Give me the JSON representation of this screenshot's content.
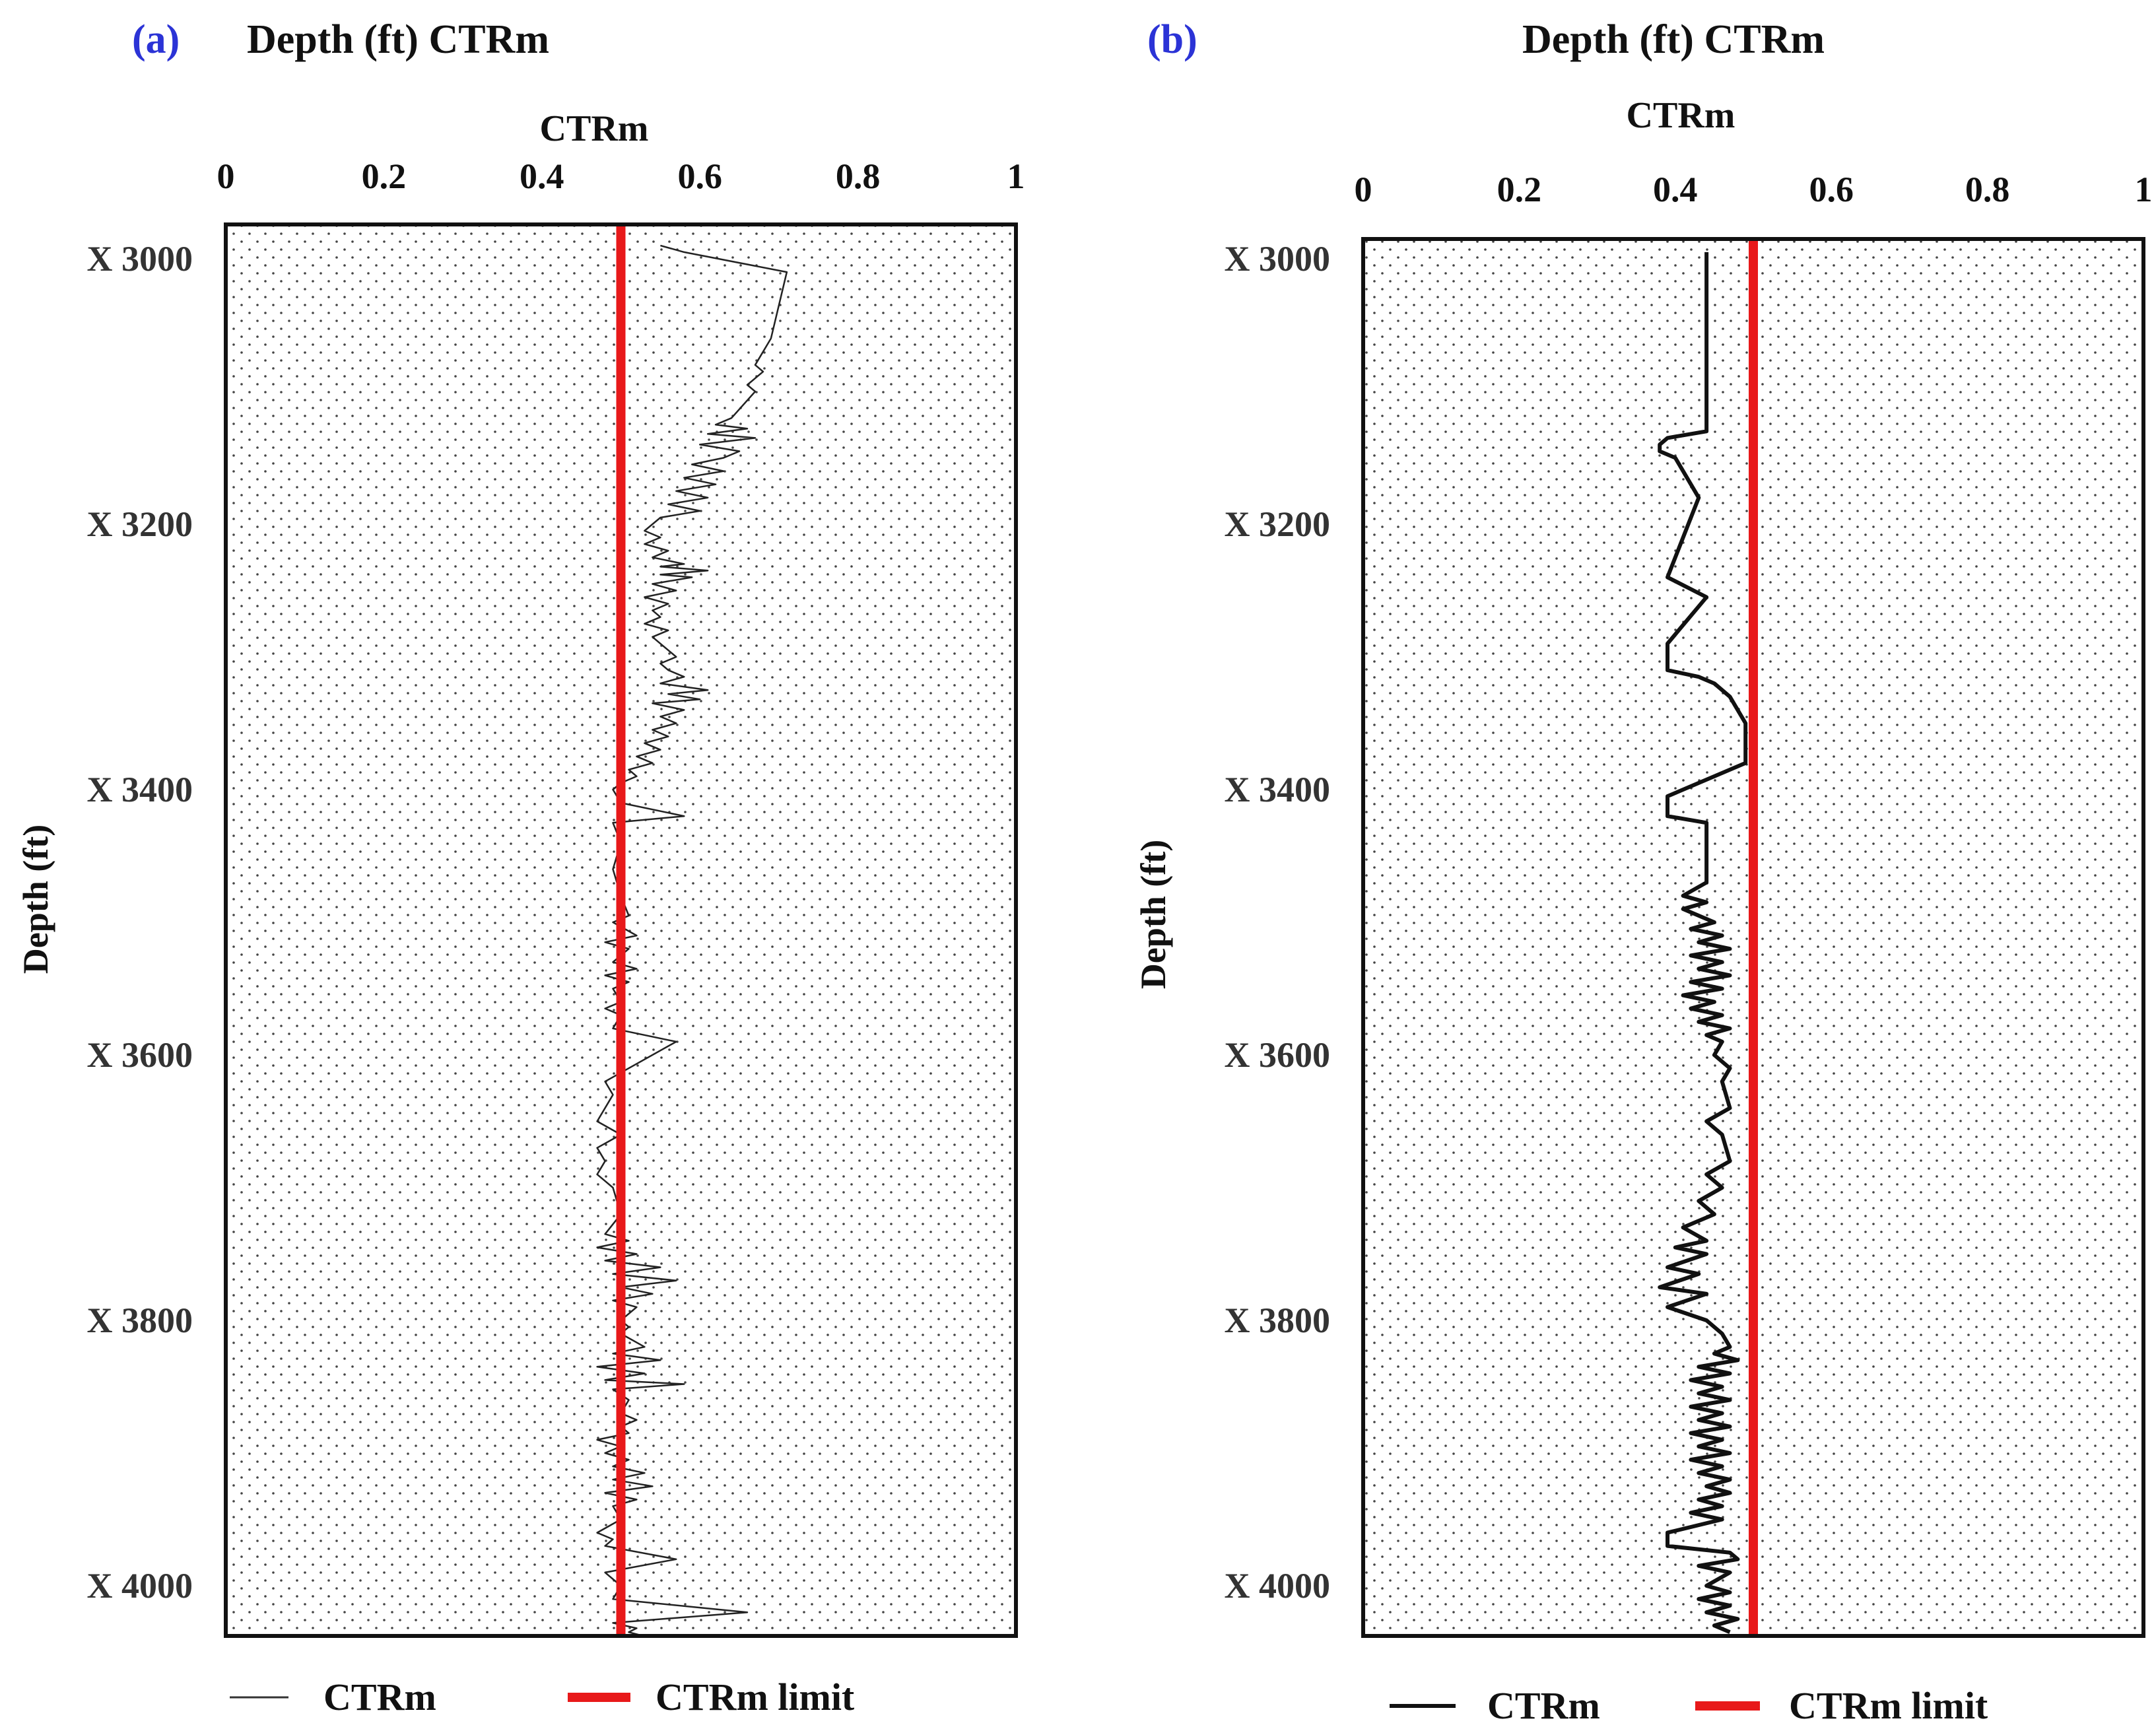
{
  "panels": [
    {
      "label": "(a)",
      "title": "Depth (ft) CTRm",
      "xlabel": "CTRm",
      "ylabel": "Depth (ft)",
      "legend": [
        "CTRm",
        "CTRm limit"
      ]
    },
    {
      "label": "(b)",
      "title": "Depth (ft) CTRm",
      "xlabel": "CTRm",
      "ylabel": "Depth (ft)",
      "legend": [
        "CTRm",
        "CTRm limit"
      ]
    }
  ],
  "chart_data": [
    {
      "type": "line",
      "title": "Depth (ft) CTRm",
      "xlabel": "CTRm",
      "ylabel": "Depth (ft)",
      "xlim": [
        0,
        1
      ],
      "ylim": [
        2990,
        4040
      ],
      "x_ticks": [
        0,
        0.2,
        0.4,
        0.6,
        0.8,
        1
      ],
      "x_tick_labels": [
        "0",
        "0.2",
        "0.4",
        "0.6",
        "0.8",
        "1"
      ],
      "y_ticks": [
        3000,
        3200,
        3400,
        3600,
        3800,
        4000
      ],
      "y_tick_labels": [
        "X 3000",
        "X 3200",
        "X 3400",
        "X 3600",
        "X 3800",
        "X 4000"
      ],
      "limit": 0.5,
      "colors": {
        "series": "#222222",
        "limit": "#e8191a"
      },
      "series": [
        {
          "name": "CTRm",
          "points": [
            [
              0.55,
              2990
            ],
            [
              0.58,
              2995
            ],
            [
              0.71,
              3010
            ],
            [
              0.69,
              3060
            ],
            [
              0.67,
              3080
            ],
            [
              0.68,
              3085
            ],
            [
              0.66,
              3095
            ],
            [
              0.67,
              3100
            ],
            [
              0.64,
              3120
            ],
            [
              0.62,
              3125
            ],
            [
              0.66,
              3128
            ],
            [
              0.61,
              3132
            ],
            [
              0.67,
              3135
            ],
            [
              0.6,
              3140
            ],
            [
              0.65,
              3145
            ],
            [
              0.63,
              3150
            ],
            [
              0.59,
              3155
            ],
            [
              0.63,
              3160
            ],
            [
              0.58,
              3165
            ],
            [
              0.62,
              3170
            ],
            [
              0.57,
              3175
            ],
            [
              0.61,
              3180
            ],
            [
              0.56,
              3185
            ],
            [
              0.6,
              3190
            ],
            [
              0.55,
              3195
            ],
            [
              0.54,
              3200
            ],
            [
              0.53,
              3205
            ],
            [
              0.55,
              3210
            ],
            [
              0.53,
              3215
            ],
            [
              0.56,
              3220
            ],
            [
              0.54,
              3225
            ],
            [
              0.58,
              3230
            ],
            [
              0.55,
              3232
            ],
            [
              0.61,
              3235
            ],
            [
              0.55,
              3238
            ],
            [
              0.59,
              3240
            ],
            [
              0.54,
              3245
            ],
            [
              0.57,
              3250
            ],
            [
              0.53,
              3255
            ],
            [
              0.56,
              3260
            ],
            [
              0.54,
              3265
            ],
            [
              0.55,
              3270
            ],
            [
              0.53,
              3275
            ],
            [
              0.56,
              3280
            ],
            [
              0.54,
              3285
            ],
            [
              0.55,
              3290
            ],
            [
              0.57,
              3300
            ],
            [
              0.55,
              3305
            ],
            [
              0.56,
              3310
            ],
            [
              0.58,
              3315
            ],
            [
              0.55,
              3320
            ],
            [
              0.61,
              3325
            ],
            [
              0.56,
              3328
            ],
            [
              0.6,
              3332
            ],
            [
              0.54,
              3335
            ],
            [
              0.58,
              3340
            ],
            [
              0.55,
              3345
            ],
            [
              0.57,
              3350
            ],
            [
              0.54,
              3355
            ],
            [
              0.56,
              3360
            ],
            [
              0.53,
              3365
            ],
            [
              0.55,
              3370
            ],
            [
              0.52,
              3375
            ],
            [
              0.54,
              3380
            ],
            [
              0.51,
              3385
            ],
            [
              0.52,
              3390
            ],
            [
              0.5,
              3395
            ],
            [
              0.49,
              3400
            ],
            [
              0.5,
              3410
            ],
            [
              0.58,
              3420
            ],
            [
              0.49,
              3425
            ],
            [
              0.5,
              3440
            ],
            [
              0.49,
              3460
            ],
            [
              0.5,
              3480
            ],
            [
              0.51,
              3495
            ],
            [
              0.49,
              3500
            ],
            [
              0.52,
              3510
            ],
            [
              0.48,
              3515
            ],
            [
              0.51,
              3520
            ],
            [
              0.49,
              3530
            ],
            [
              0.52,
              3535
            ],
            [
              0.48,
              3540
            ],
            [
              0.51,
              3545
            ],
            [
              0.49,
              3550
            ],
            [
              0.5,
              3560
            ],
            [
              0.48,
              3565
            ],
            [
              0.5,
              3570
            ],
            [
              0.49,
              3580
            ],
            [
              0.57,
              3590
            ],
            [
              0.48,
              3620
            ],
            [
              0.49,
              3630
            ],
            [
              0.47,
              3650
            ],
            [
              0.5,
              3660
            ],
            [
              0.47,
              3670
            ],
            [
              0.48,
              3680
            ],
            [
              0.47,
              3690
            ],
            [
              0.48,
              3695
            ],
            [
              0.49,
              3700
            ],
            [
              0.5,
              3720
            ],
            [
              0.48,
              3735
            ],
            [
              0.51,
              3740
            ],
            [
              0.47,
              3745
            ],
            [
              0.52,
              3750
            ],
            [
              0.48,
              3755
            ],
            [
              0.55,
              3760
            ],
            [
              0.49,
              3765
            ],
            [
              0.57,
              3770
            ],
            [
              0.5,
              3775
            ],
            [
              0.54,
              3780
            ],
            [
              0.49,
              3785
            ],
            [
              0.52,
              3790
            ],
            [
              0.5,
              3800
            ],
            [
              0.51,
              3805
            ],
            [
              0.5,
              3810
            ],
            [
              0.53,
              3820
            ],
            [
              0.49,
              3825
            ],
            [
              0.55,
              3830
            ],
            [
              0.47,
              3835
            ],
            [
              0.53,
              3840
            ],
            [
              0.48,
              3845
            ],
            [
              0.58,
              3848
            ],
            [
              0.49,
              3852
            ],
            [
              0.51,
              3860
            ],
            [
              0.5,
              3870
            ],
            [
              0.52,
              3875
            ],
            [
              0.5,
              3880
            ],
            [
              0.51,
              3885
            ],
            [
              0.47,
              3890
            ],
            [
              0.5,
              3895
            ],
            [
              0.48,
              3900
            ],
            [
              0.51,
              3905
            ],
            [
              0.49,
              3910
            ],
            [
              0.53,
              3915
            ],
            [
              0.49,
              3920
            ],
            [
              0.54,
              3925
            ],
            [
              0.48,
              3930
            ],
            [
              0.52,
              3935
            ],
            [
              0.49,
              3940
            ],
            [
              0.5,
              3950
            ],
            [
              0.47,
              3960
            ],
            [
              0.49,
              3965
            ],
            [
              0.48,
              3970
            ],
            [
              0.57,
              3980
            ],
            [
              0.48,
              3990
            ],
            [
              0.5,
              4000
            ],
            [
              0.49,
              4010
            ],
            [
              0.66,
              4020
            ],
            [
              0.49,
              4028
            ],
            [
              0.52,
              4032
            ],
            [
              0.51,
              4035
            ],
            [
              0.53,
              4038
            ]
          ]
        }
      ]
    },
    {
      "type": "line",
      "title": "Depth (ft) CTRm",
      "xlabel": "CTRm",
      "ylabel": "Depth (ft)",
      "xlim": [
        0,
        1
      ],
      "ylim": [
        2990,
        4040
      ],
      "x_ticks": [
        0,
        0.2,
        0.4,
        0.6,
        0.8,
        1
      ],
      "x_tick_labels": [
        "0",
        "0.2",
        "0.4",
        "0.6",
        "0.8",
        "1"
      ],
      "y_ticks": [
        3000,
        3200,
        3400,
        3600,
        3800,
        4000
      ],
      "y_tick_labels": [
        "X 3000",
        "X 3200",
        "X 3400",
        "X 3600",
        "X 3800",
        "X 4000"
      ],
      "limit": 0.5,
      "colors": {
        "series": "#111111",
        "limit": "#e8191a"
      },
      "series": [
        {
          "name": "CTRm",
          "points": [
            [
              0.44,
              2995
            ],
            [
              0.44,
              3130
            ],
            [
              0.39,
              3135
            ],
            [
              0.38,
              3140
            ],
            [
              0.38,
              3145
            ],
            [
              0.4,
              3150
            ],
            [
              0.43,
              3180
            ],
            [
              0.39,
              3240
            ],
            [
              0.44,
              3255
            ],
            [
              0.39,
              3290
            ],
            [
              0.39,
              3310
            ],
            [
              0.43,
              3315
            ],
            [
              0.45,
              3320
            ],
            [
              0.47,
              3330
            ],
            [
              0.49,
              3350
            ],
            [
              0.49,
              3380
            ],
            [
              0.39,
              3405
            ],
            [
              0.39,
              3420
            ],
            [
              0.44,
              3425
            ],
            [
              0.44,
              3470
            ],
            [
              0.41,
              3480
            ],
            [
              0.44,
              3485
            ],
            [
              0.41,
              3490
            ],
            [
              0.45,
              3500
            ],
            [
              0.42,
              3505
            ],
            [
              0.46,
              3510
            ],
            [
              0.43,
              3515
            ],
            [
              0.47,
              3520
            ],
            [
              0.42,
              3525
            ],
            [
              0.46,
              3530
            ],
            [
              0.43,
              3535
            ],
            [
              0.47,
              3540
            ],
            [
              0.42,
              3545
            ],
            [
              0.46,
              3550
            ],
            [
              0.41,
              3555
            ],
            [
              0.45,
              3560
            ],
            [
              0.42,
              3565
            ],
            [
              0.46,
              3570
            ],
            [
              0.43,
              3575
            ],
            [
              0.47,
              3580
            ],
            [
              0.44,
              3585
            ],
            [
              0.46,
              3590
            ],
            [
              0.45,
              3600
            ],
            [
              0.47,
              3610
            ],
            [
              0.46,
              3620
            ],
            [
              0.47,
              3640
            ],
            [
              0.44,
              3650
            ],
            [
              0.46,
              3660
            ],
            [
              0.47,
              3680
            ],
            [
              0.44,
              3690
            ],
            [
              0.46,
              3700
            ],
            [
              0.43,
              3710
            ],
            [
              0.45,
              3720
            ],
            [
              0.41,
              3730
            ],
            [
              0.44,
              3740
            ],
            [
              0.4,
              3745
            ],
            [
              0.44,
              3750
            ],
            [
              0.39,
              3760
            ],
            [
              0.43,
              3765
            ],
            [
              0.38,
              3775
            ],
            [
              0.44,
              3780
            ],
            [
              0.39,
              3790
            ],
            [
              0.44,
              3800
            ],
            [
              0.46,
              3810
            ],
            [
              0.47,
              3820
            ],
            [
              0.45,
              3825
            ],
            [
              0.48,
              3830
            ],
            [
              0.43,
              3835
            ],
            [
              0.47,
              3840
            ],
            [
              0.42,
              3845
            ],
            [
              0.46,
              3850
            ],
            [
              0.43,
              3855
            ],
            [
              0.47,
              3860
            ],
            [
              0.42,
              3865
            ],
            [
              0.46,
              3870
            ],
            [
              0.43,
              3875
            ],
            [
              0.47,
              3880
            ],
            [
              0.42,
              3885
            ],
            [
              0.46,
              3890
            ],
            [
              0.43,
              3895
            ],
            [
              0.47,
              3900
            ],
            [
              0.42,
              3905
            ],
            [
              0.46,
              3910
            ],
            [
              0.43,
              3915
            ],
            [
              0.47,
              3920
            ],
            [
              0.44,
              3925
            ],
            [
              0.47,
              3930
            ],
            [
              0.43,
              3935
            ],
            [
              0.46,
              3940
            ],
            [
              0.42,
              3945
            ],
            [
              0.46,
              3950
            ],
            [
              0.39,
              3960
            ],
            [
              0.39,
              3970
            ],
            [
              0.47,
              3975
            ],
            [
              0.48,
              3980
            ],
            [
              0.43,
              3985
            ],
            [
              0.47,
              3990
            ],
            [
              0.44,
              4000
            ],
            [
              0.47,
              4005
            ],
            [
              0.43,
              4010
            ],
            [
              0.47,
              4015
            ],
            [
              0.44,
              4020
            ],
            [
              0.48,
              4025
            ],
            [
              0.45,
              4030
            ],
            [
              0.47,
              4035
            ]
          ]
        }
      ]
    }
  ]
}
